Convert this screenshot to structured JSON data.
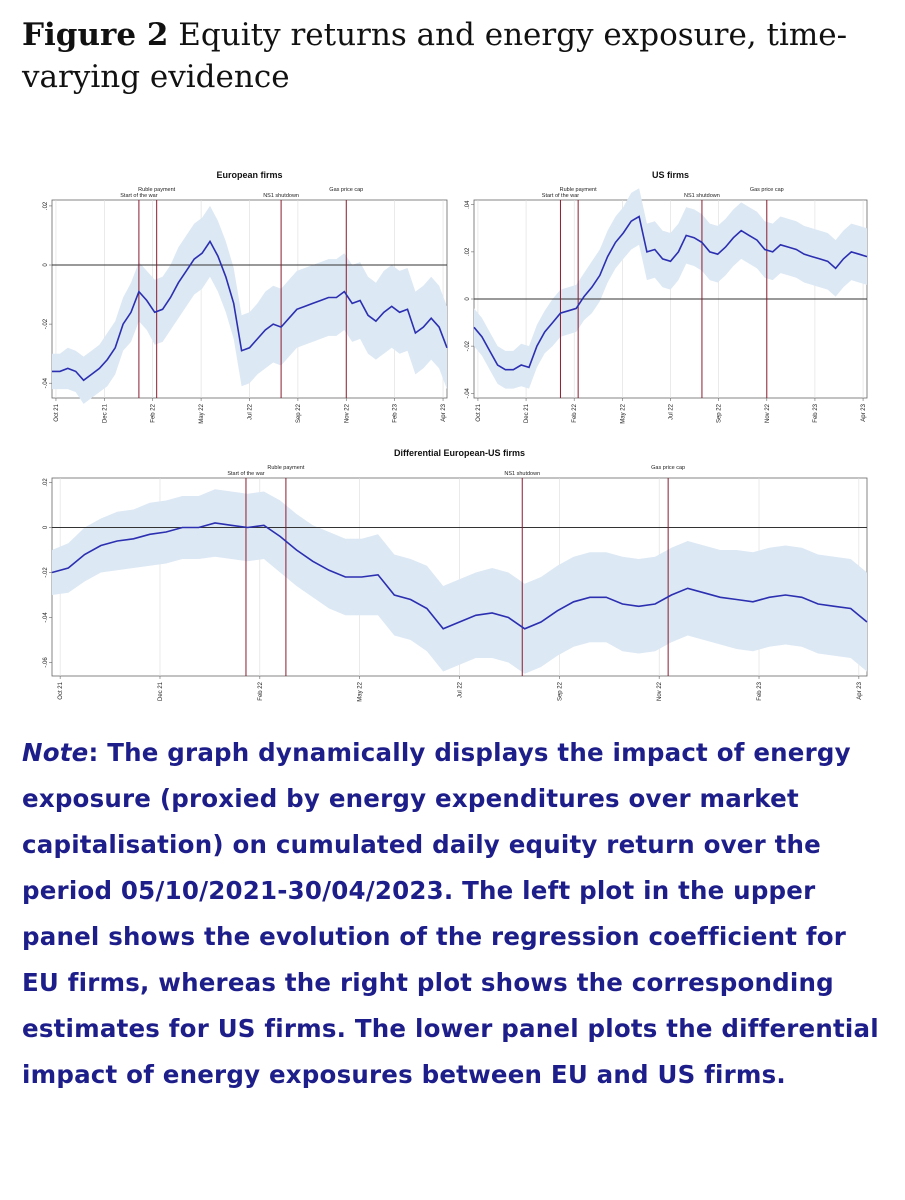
{
  "figure": {
    "label": "Figure 2",
    "title": "Equity returns and energy exposure, time-varying evidence"
  },
  "note": {
    "lead": "Note",
    "text": ": The graph dynamically displays the impact of energy exposure (proxied by energy expenditures over market capitalisation) on cumulated daily equity return over the period 05/10/2021-30/04/2023. The left plot in the upper panel shows the evolution of the regression coefficient for EU firms, whereas the right plot shows the corresponding estimates for US firms. The lower panel plots the differential impact of energy exposures between EU and US firms."
  },
  "colors": {
    "line": "#2b2fb0",
    "band": "#dce8f4",
    "event": "#8b1c2e",
    "zero": "#333333",
    "grid": "#dddddd"
  },
  "chart_data": [
    {
      "type": "line",
      "title": "European firms",
      "xlabel": "",
      "ylabel": "",
      "x_ticks": [
        "Oct 21",
        "Dec 21",
        "Feb 22",
        "May 22",
        "Jul 22",
        "Sep 22",
        "Nov 22",
        "Feb 23",
        "Apr 23"
      ],
      "y_ticks": [
        "-.04",
        "-.02",
        "0",
        ".02"
      ],
      "ylim": [
        -0.045,
        0.022
      ],
      "grid": true,
      "events": [
        {
          "label": "Start of the war",
          "x": 0.22
        },
        {
          "label": "Ruble payment",
          "x": 0.265
        },
        {
          "label": "NS1 shutdown",
          "x": 0.58
        },
        {
          "label": "Gas price cap",
          "x": 0.745
        }
      ],
      "series": [
        {
          "x": [
            0,
            0.02,
            0.04,
            0.06,
            0.08,
            0.1,
            0.12,
            0.14,
            0.16,
            0.18,
            0.2,
            0.22,
            0.24,
            0.26,
            0.28,
            0.3,
            0.32,
            0.34,
            0.36,
            0.38,
            0.4,
            0.42,
            0.44,
            0.46,
            0.48,
            0.5,
            0.52,
            0.54,
            0.56,
            0.58,
            0.6,
            0.62,
            0.64,
            0.66,
            0.68,
            0.7,
            0.72,
            0.74,
            0.76,
            0.78,
            0.8,
            0.82,
            0.84,
            0.86,
            0.88,
            0.9,
            0.92,
            0.94,
            0.96,
            0.98,
            1.0
          ],
          "y": [
            -0.036,
            -0.036,
            -0.035,
            -0.036,
            -0.039,
            -0.037,
            -0.035,
            -0.032,
            -0.028,
            -0.02,
            -0.016,
            -0.009,
            -0.012,
            -0.016,
            -0.015,
            -0.011,
            -0.006,
            -0.002,
            0.002,
            0.004,
            0.008,
            0.003,
            -0.004,
            -0.013,
            -0.029,
            -0.028,
            -0.025,
            -0.022,
            -0.02,
            -0.021,
            -0.018,
            -0.015,
            -0.014,
            -0.013,
            -0.012,
            -0.011,
            -0.011,
            -0.009,
            -0.013,
            -0.012,
            -0.017,
            -0.019,
            -0.016,
            -0.014,
            -0.016,
            -0.015,
            -0.023,
            -0.021,
            -0.018,
            -0.021,
            -0.028
          ],
          "band": [
            0.006,
            0.006,
            0.007,
            0.007,
            0.008,
            0.008,
            0.008,
            0.009,
            0.009,
            0.009,
            0.01,
            0.01,
            0.01,
            0.011,
            0.011,
            0.011,
            0.012,
            0.012,
            0.012,
            0.012,
            0.012,
            0.012,
            0.012,
            0.012,
            0.012,
            0.012,
            0.012,
            0.013,
            0.013,
            0.013,
            0.013,
            0.013,
            0.013,
            0.013,
            0.013,
            0.013,
            0.013,
            0.013,
            0.013,
            0.013,
            0.013,
            0.013,
            0.014,
            0.014,
            0.014,
            0.014,
            0.014,
            0.014,
            0.014,
            0.014,
            0.014
          ]
        }
      ]
    },
    {
      "type": "line",
      "title": "US firms",
      "xlabel": "",
      "ylabel": "",
      "x_ticks": [
        "Oct 21",
        "Dec 21",
        "Feb 22",
        "May 22",
        "Jul 22",
        "Sep 22",
        "Nov 22",
        "Feb 23",
        "Apr 23"
      ],
      "y_ticks": [
        "-.04",
        "-.02",
        "0",
        ".02",
        ".04"
      ],
      "ylim": [
        -0.042,
        0.042
      ],
      "grid": true,
      "events": [
        {
          "label": "Start of the war",
          "x": 0.22
        },
        {
          "label": "Ruble payment",
          "x": 0.265
        },
        {
          "label": "NS1 shutdown",
          "x": 0.58
        },
        {
          "label": "Gas price cap",
          "x": 0.745
        }
      ],
      "series": [
        {
          "x": [
            0,
            0.02,
            0.04,
            0.06,
            0.08,
            0.1,
            0.12,
            0.14,
            0.16,
            0.18,
            0.2,
            0.22,
            0.24,
            0.26,
            0.28,
            0.3,
            0.32,
            0.34,
            0.36,
            0.38,
            0.4,
            0.42,
            0.44,
            0.46,
            0.48,
            0.5,
            0.52,
            0.54,
            0.56,
            0.58,
            0.6,
            0.62,
            0.64,
            0.66,
            0.68,
            0.7,
            0.72,
            0.74,
            0.76,
            0.78,
            0.8,
            0.82,
            0.84,
            0.86,
            0.88,
            0.9,
            0.92,
            0.94,
            0.96,
            0.98,
            1.0
          ],
          "y": [
            -0.012,
            -0.016,
            -0.022,
            -0.028,
            -0.03,
            -0.03,
            -0.028,
            -0.029,
            -0.02,
            -0.014,
            -0.01,
            -0.006,
            -0.005,
            -0.004,
            0.001,
            0.005,
            0.01,
            0.018,
            0.024,
            0.028,
            0.033,
            0.035,
            0.02,
            0.021,
            0.017,
            0.016,
            0.02,
            0.027,
            0.026,
            0.024,
            0.02,
            0.019,
            0.022,
            0.026,
            0.029,
            0.027,
            0.025,
            0.021,
            0.02,
            0.023,
            0.022,
            0.021,
            0.019,
            0.018,
            0.017,
            0.016,
            0.013,
            0.017,
            0.02,
            0.019,
            0.018
          ],
          "band": [
            0.008,
            0.008,
            0.008,
            0.008,
            0.008,
            0.008,
            0.009,
            0.009,
            0.009,
            0.009,
            0.01,
            0.01,
            0.01,
            0.01,
            0.01,
            0.011,
            0.011,
            0.011,
            0.011,
            0.011,
            0.012,
            0.012,
            0.012,
            0.012,
            0.012,
            0.012,
            0.012,
            0.012,
            0.012,
            0.012,
            0.012,
            0.012,
            0.012,
            0.012,
            0.012,
            0.012,
            0.012,
            0.012,
            0.012,
            0.012,
            0.012,
            0.012,
            0.012,
            0.012,
            0.012,
            0.012,
            0.012,
            0.012,
            0.012,
            0.012,
            0.012
          ]
        }
      ]
    },
    {
      "type": "line",
      "title": "Differential European-US firms",
      "xlabel": "",
      "ylabel": "",
      "x_ticks": [
        "Oct 21",
        "Dec 21",
        "Feb 22",
        "May 22",
        "Jul 22",
        "Sep 22",
        "Nov 22",
        "Feb 23",
        "Apr 23"
      ],
      "y_ticks": [
        "-.06",
        "-.04",
        "-.02",
        "0",
        ".02"
      ],
      "ylim": [
        -0.066,
        0.022
      ],
      "grid": true,
      "events": [
        {
          "label": "Start of the war",
          "x": 0.238
        },
        {
          "label": "Ruble payment",
          "x": 0.287
        },
        {
          "label": "NS1 shutdown",
          "x": 0.577
        },
        {
          "label": "Gas price cap",
          "x": 0.756
        }
      ],
      "series": [
        {
          "x": [
            0,
            0.02,
            0.04,
            0.06,
            0.08,
            0.1,
            0.12,
            0.14,
            0.16,
            0.18,
            0.2,
            0.22,
            0.24,
            0.26,
            0.28,
            0.3,
            0.32,
            0.34,
            0.36,
            0.38,
            0.4,
            0.42,
            0.44,
            0.46,
            0.48,
            0.5,
            0.52,
            0.54,
            0.56,
            0.58,
            0.6,
            0.62,
            0.64,
            0.66,
            0.68,
            0.7,
            0.72,
            0.74,
            0.76,
            0.78,
            0.8,
            0.82,
            0.84,
            0.86,
            0.88,
            0.9,
            0.92,
            0.94,
            0.96,
            0.98,
            1.0
          ],
          "y": [
            -0.02,
            -0.018,
            -0.012,
            -0.008,
            -0.006,
            -0.005,
            -0.003,
            -0.002,
            0.0,
            0.0,
            0.002,
            0.001,
            0.0,
            0.001,
            -0.004,
            -0.01,
            -0.015,
            -0.019,
            -0.022,
            -0.022,
            -0.021,
            -0.03,
            -0.032,
            -0.036,
            -0.045,
            -0.042,
            -0.039,
            -0.038,
            -0.04,
            -0.045,
            -0.042,
            -0.037,
            -0.033,
            -0.031,
            -0.031,
            -0.034,
            -0.035,
            -0.034,
            -0.03,
            -0.027,
            -0.029,
            -0.031,
            -0.032,
            -0.033,
            -0.031,
            -0.03,
            -0.031,
            -0.034,
            -0.035,
            -0.036,
            -0.042
          ],
          "band": [
            0.01,
            0.011,
            0.012,
            0.012,
            0.013,
            0.013,
            0.014,
            0.014,
            0.014,
            0.014,
            0.015,
            0.015,
            0.015,
            0.015,
            0.016,
            0.016,
            0.016,
            0.017,
            0.017,
            0.017,
            0.018,
            0.018,
            0.018,
            0.019,
            0.019,
            0.019,
            0.019,
            0.02,
            0.02,
            0.02,
            0.02,
            0.02,
            0.02,
            0.02,
            0.02,
            0.021,
            0.021,
            0.021,
            0.021,
            0.021,
            0.021,
            0.021,
            0.022,
            0.022,
            0.022,
            0.022,
            0.022,
            0.022,
            0.022,
            0.022,
            0.022
          ]
        }
      ]
    }
  ]
}
